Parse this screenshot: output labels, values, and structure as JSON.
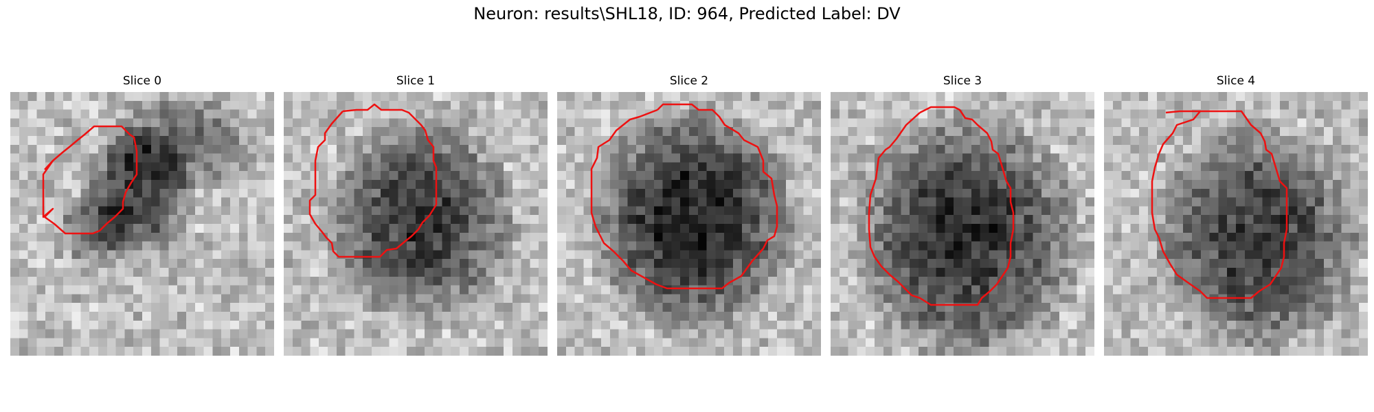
{
  "figure": {
    "title": "Neuron: results\\SHL18, ID: 964, Predicted Label: DV"
  },
  "panels": [
    {
      "label": "Slice 0"
    },
    {
      "label": "Slice 1"
    },
    {
      "label": "Slice 2"
    },
    {
      "label": "Slice 3"
    },
    {
      "label": "Slice 4"
    }
  ],
  "colors": {
    "contour": "#ee1111",
    "background": "#ffffff",
    "image_colormap": "grayscale"
  }
}
